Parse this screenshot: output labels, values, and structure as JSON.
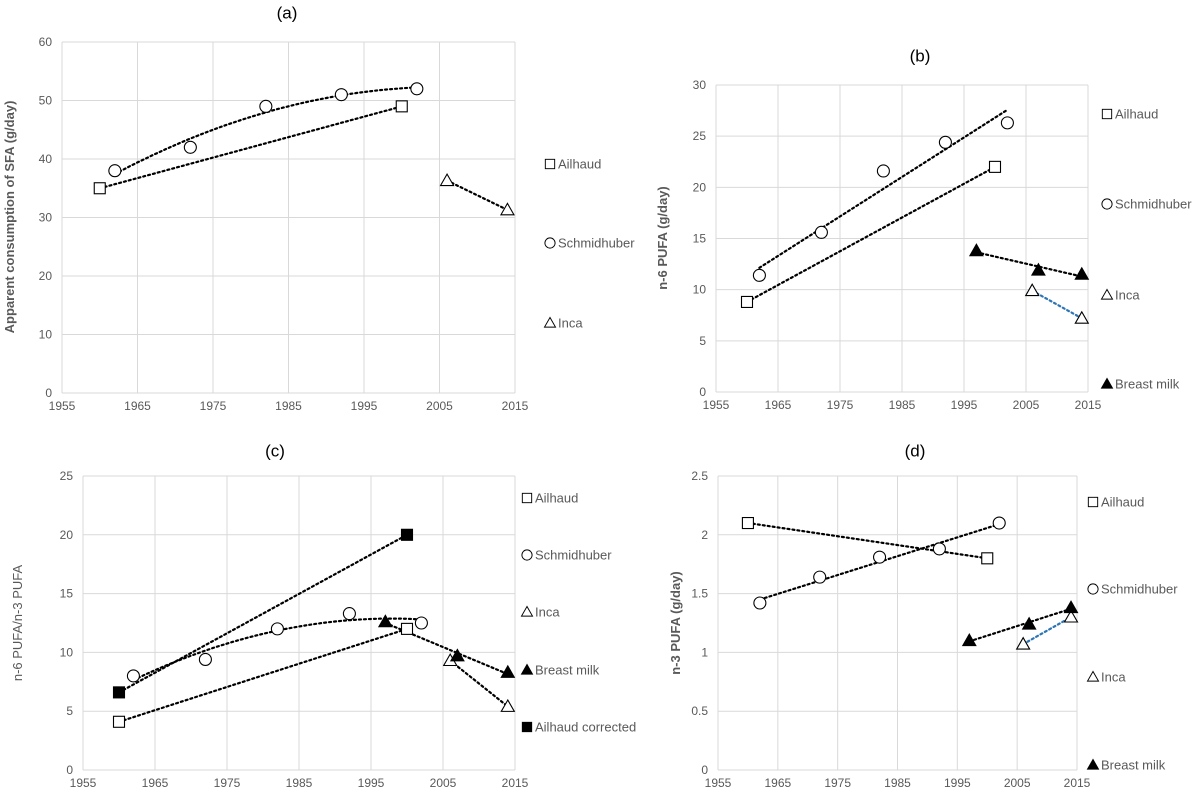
{
  "chart_data": [
    {
      "id": "a",
      "type": "scatter",
      "panel_label": "(a)",
      "ylabel": "Apparent consumption of SFA (g/day)",
      "xlabel": "",
      "xlim": [
        1955,
        2015
      ],
      "ylim": [
        0,
        60
      ],
      "xticks": [
        1955,
        1965,
        1975,
        1985,
        1995,
        2005,
        2015
      ],
      "yticks": [
        0,
        10,
        20,
        30,
        40,
        50,
        60
      ],
      "grid": true,
      "legend_placement": "right",
      "series": [
        {
          "name": "Ailhaud",
          "marker": "square",
          "trend": "linear",
          "trendColor": "#000000",
          "points": [
            [
              1960,
              35
            ],
            [
              2000,
              49
            ]
          ]
        },
        {
          "name": "Schmidhuber",
          "marker": "circle",
          "trend": "poly",
          "trendColor": "#000000",
          "points": [
            [
              1962,
              38
            ],
            [
              1972,
              42
            ],
            [
              1982,
              49
            ],
            [
              1992,
              51
            ],
            [
              2002,
              52
            ]
          ]
        },
        {
          "name": "Inca",
          "marker": "triangle",
          "trend": "linear",
          "trendColor": "#000000",
          "points": [
            [
              2006,
              36.3
            ],
            [
              2014,
              31.3
            ]
          ]
        }
      ]
    },
    {
      "id": "b",
      "type": "scatter",
      "panel_label": "(b)",
      "ylabel": "n-6 PUFA (g/day)",
      "xlabel": "",
      "xlim": [
        1955,
        2015
      ],
      "ylim": [
        0,
        30
      ],
      "xticks": [
        1955,
        1965,
        1975,
        1985,
        1995,
        2005,
        2015
      ],
      "yticks": [
        0,
        5,
        10,
        15,
        20,
        25,
        30
      ],
      "grid": true,
      "legend_placement": "right",
      "series": [
        {
          "name": "Ailhaud",
          "marker": "square",
          "trend": "linear",
          "trendColor": "#000000",
          "points": [
            [
              1960,
              8.8
            ],
            [
              2000,
              22
            ]
          ]
        },
        {
          "name": "Schmidhuber",
          "marker": "circle",
          "trend": "linear",
          "trendColor": "#000000",
          "points": [
            [
              1962,
              11.4
            ],
            [
              1972,
              15.6
            ],
            [
              1982,
              21.6
            ],
            [
              1992,
              24.4
            ],
            [
              2002,
              26.3
            ]
          ]
        },
        {
          "name": "Inca",
          "marker": "triangle",
          "trend": "linear",
          "trendColor": "#2e75b6",
          "points": [
            [
              2006,
              9.9
            ],
            [
              2014,
              7.2
            ]
          ]
        },
        {
          "name": "Breast milk",
          "marker": "triangle-filled",
          "trend": "linear",
          "trendColor": "#000000",
          "points": [
            [
              1997,
              13.8
            ],
            [
              2007,
              11.9
            ],
            [
              2014,
              11.5
            ]
          ]
        }
      ]
    },
    {
      "id": "c",
      "type": "scatter",
      "panel_label": "(c)",
      "ylabel": "n-6 PUFA/n-3 PUFA",
      "xlabel": "",
      "xlim": [
        1955,
        2015
      ],
      "ylim": [
        0,
        25
      ],
      "xticks": [
        1955,
        1965,
        1975,
        1985,
        1995,
        2005,
        2015
      ],
      "yticks": [
        0,
        5,
        10,
        15,
        20,
        25
      ],
      "grid": true,
      "legend_placement": "right",
      "series": [
        {
          "name": "Ailhaud",
          "marker": "square",
          "trend": "linear",
          "trendColor": "#000000",
          "points": [
            [
              1960,
              4.1
            ],
            [
              2000,
              12
            ]
          ]
        },
        {
          "name": "Schmidhuber",
          "marker": "circle",
          "trend": "poly",
          "trendColor": "#000000",
          "points": [
            [
              1962,
              8
            ],
            [
              1972,
              9.4
            ],
            [
              1982,
              12
            ],
            [
              1992,
              13.3
            ],
            [
              2002,
              12.5
            ]
          ]
        },
        {
          "name": "Inca",
          "marker": "triangle",
          "trend": "linear",
          "trendColor": "#000000",
          "points": [
            [
              2006,
              9.3
            ],
            [
              2014,
              5.4
            ]
          ]
        },
        {
          "name": "Breast milk",
          "marker": "triangle-filled",
          "trend": "linear",
          "trendColor": "#000000",
          "points": [
            [
              1997,
              12.6
            ],
            [
              2007,
              9.7
            ],
            [
              2014,
              8.3
            ]
          ]
        },
        {
          "name": "Ailhaud corrected",
          "marker": "square-filled",
          "trend": "linear",
          "trendColor": "#000000",
          "points": [
            [
              1960,
              6.6
            ],
            [
              2000,
              20
            ]
          ]
        }
      ]
    },
    {
      "id": "d",
      "type": "scatter",
      "panel_label": "(d)",
      "ylabel": "n-3 PUFA (g/day)",
      "xlabel": "",
      "xlim": [
        1955,
        2015
      ],
      "ylim": [
        0,
        2.5
      ],
      "xticks": [
        1955,
        1965,
        1975,
        1985,
        1995,
        2005,
        2015
      ],
      "yticks": [
        0,
        0.5,
        1,
        1.5,
        2,
        2.5
      ],
      "grid": true,
      "legend_placement": "right",
      "series": [
        {
          "name": "Ailhaud",
          "marker": "square",
          "trend": "linear",
          "trendColor": "#000000",
          "points": [
            [
              1960,
              2.1
            ],
            [
              2000,
              1.8
            ]
          ]
        },
        {
          "name": "Schmidhuber",
          "marker": "circle",
          "trend": "linear",
          "trendColor": "#000000",
          "points": [
            [
              1962,
              1.42
            ],
            [
              1972,
              1.64
            ],
            [
              1982,
              1.81
            ],
            [
              1992,
              1.88
            ],
            [
              2002,
              2.1
            ]
          ]
        },
        {
          "name": "Inca",
          "marker": "triangle",
          "trend": "linear",
          "trendColor": "#2e75b6",
          "points": [
            [
              2006,
              1.07
            ],
            [
              2014,
              1.3
            ]
          ]
        },
        {
          "name": "Breast milk",
          "marker": "triangle-filled",
          "trend": "linear",
          "trendColor": "#000000",
          "points": [
            [
              1997,
              1.1
            ],
            [
              2007,
              1.24
            ],
            [
              2014,
              1.38
            ]
          ]
        }
      ]
    }
  ]
}
